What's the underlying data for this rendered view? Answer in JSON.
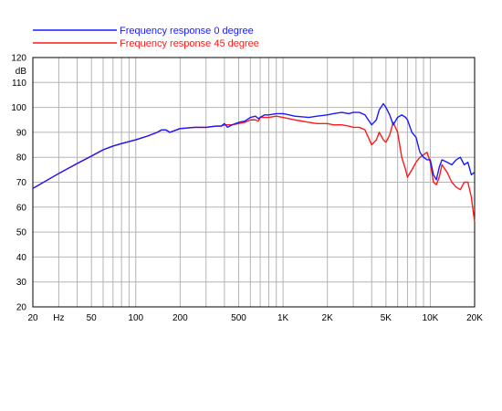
{
  "chart_data": {
    "type": "line",
    "title": "",
    "xlabel": "",
    "ylabel": "dB",
    "x_scale": "log",
    "xlim": [
      20,
      20000
    ],
    "ylim": [
      20,
      120
    ],
    "grid": true,
    "legend_position": "top-left",
    "x_ticks": [
      {
        "value": 20,
        "label": "20"
      },
      {
        "value": 30,
        "label": "Hz"
      },
      {
        "value": 50,
        "label": "50"
      },
      {
        "value": 100,
        "label": "100"
      },
      {
        "value": 200,
        "label": "200"
      },
      {
        "value": 500,
        "label": "500"
      },
      {
        "value": 1000,
        "label": "1K"
      },
      {
        "value": 2000,
        "label": "2K"
      },
      {
        "value": 5000,
        "label": "5K"
      },
      {
        "value": 10000,
        "label": "10K"
      },
      {
        "value": 20000,
        "label": "20K"
      }
    ],
    "y_ticks": [
      {
        "value": 20,
        "label": "20"
      },
      {
        "value": 30,
        "label": "30"
      },
      {
        "value": 40,
        "label": "40"
      },
      {
        "value": 50,
        "label": "50"
      },
      {
        "value": 60,
        "label": "60"
      },
      {
        "value": 70,
        "label": "70"
      },
      {
        "value": 80,
        "label": "80"
      },
      {
        "value": 90,
        "label": "90"
      },
      {
        "value": 100,
        "label": "100"
      },
      {
        "value": 110,
        "label": "110"
      },
      {
        "value": 120,
        "label": "120"
      }
    ],
    "series": [
      {
        "name": "Frequency response 0 degree",
        "color": "#1a1aff",
        "x": [
          20,
          30,
          40,
          50,
          60,
          70,
          80,
          100,
          120,
          140,
          150,
          160,
          170,
          200,
          250,
          300,
          350,
          380,
          400,
          420,
          450,
          500,
          550,
          600,
          650,
          680,
          700,
          750,
          800,
          900,
          1000,
          1100,
          1200,
          1500,
          1700,
          2000,
          2200,
          2500,
          2800,
          3000,
          3300,
          3600,
          4000,
          4300,
          4500,
          4800,
          5000,
          5300,
          5600,
          6000,
          6400,
          6800,
          7000,
          7500,
          8000,
          8500,
          9000,
          9500,
          10000,
          10500,
          11000,
          11500,
          12000,
          13000,
          14000,
          15000,
          16000,
          17000,
          18000,
          19000,
          20000
        ],
        "values": [
          67.5,
          73.5,
          77.5,
          80.5,
          83,
          84.5,
          85.5,
          87,
          88.5,
          90,
          91,
          91,
          90,
          91.5,
          92,
          92,
          92.5,
          92.5,
          93.5,
          92,
          93,
          94,
          94.5,
          96,
          96.5,
          95.5,
          96,
          97,
          97,
          97.5,
          97.5,
          97,
          96.5,
          96,
          96.5,
          97,
          97.5,
          98,
          97.5,
          98,
          98,
          97,
          93,
          95,
          99,
          101.5,
          100,
          97,
          93,
          96,
          97,
          96,
          95,
          90,
          88,
          82,
          80,
          79,
          79,
          73,
          71,
          76,
          79,
          78,
          77,
          79,
          80,
          77,
          78,
          73,
          74
        ]
      },
      {
        "name": "Frequency response 45 degree",
        "color": "#ff1a1a",
        "x": [
          20,
          30,
          40,
          50,
          60,
          70,
          80,
          100,
          120,
          140,
          150,
          160,
          170,
          200,
          250,
          300,
          350,
          380,
          400,
          420,
          450,
          500,
          550,
          600,
          650,
          680,
          700,
          750,
          800,
          900,
          1000,
          1100,
          1200,
          1500,
          1700,
          2000,
          2200,
          2500,
          2800,
          3000,
          3300,
          3600,
          4000,
          4300,
          4500,
          4800,
          5000,
          5300,
          5600,
          6000,
          6400,
          6800,
          7000,
          7500,
          8000,
          8500,
          9000,
          9500,
          10000,
          10500,
          11000,
          11500,
          12000,
          13000,
          14000,
          15000,
          16000,
          17000,
          18000,
          19000,
          20000
        ],
        "values": [
          67.5,
          73.5,
          77.5,
          80.5,
          83,
          84.5,
          85.5,
          87,
          88.5,
          90,
          91,
          91,
          90,
          91.5,
          92,
          92,
          92.5,
          92.5,
          93,
          93,
          93,
          93.5,
          94,
          95,
          95,
          94.5,
          96,
          96,
          96,
          96.5,
          96,
          95.5,
          95,
          94,
          93.5,
          93.5,
          93,
          93,
          92.5,
          92,
          92,
          91,
          85,
          87,
          90,
          87,
          86,
          89,
          94,
          90,
          80,
          75,
          72,
          75,
          78,
          80,
          81,
          82,
          78,
          70,
          69,
          72,
          77,
          74,
          70,
          68,
          67,
          70,
          70,
          64,
          54
        ]
      }
    ]
  }
}
